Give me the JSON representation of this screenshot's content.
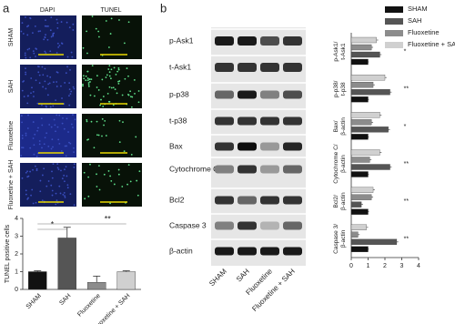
{
  "panel_labels": [
    "a",
    "b"
  ],
  "image_columns": [
    "DAPI",
    "TUNEL"
  ],
  "image_rows": [
    "SHAM",
    "SAH",
    "Fluoxetine",
    "Fluoxetine + SAH"
  ],
  "blot_labels": [
    "p-Ask1",
    "t-Ask1",
    "p-p38",
    "t-p38",
    "Bax",
    "Cytochrome C",
    "Bcl2",
    "Caspase 3",
    "β-actin"
  ],
  "blot_lanes": [
    "SHAM",
    "SAH",
    "Fluoxetine",
    "Fluoxetine + SAH"
  ],
  "chart_data": [
    {
      "type": "bar",
      "y_label": "TUNEL positive cells",
      "categories": [
        "SHAM",
        "SAH",
        "Fluoxetine",
        "Fluoxetine + SAH"
      ],
      "values": [
        1.0,
        2.9,
        0.4,
        1.0
      ],
      "errors": [
        0.05,
        0.6,
        0.35,
        0.05
      ],
      "colors": [
        "#111111",
        "#555555",
        "#8c8c8c",
        "#d0d0d0"
      ],
      "ylim": [
        0,
        4
      ],
      "yticks": [
        0,
        1,
        2,
        3,
        4
      ],
      "annotations": [
        "*",
        "**"
      ]
    },
    {
      "type": "barh",
      "categories": [
        "p-Ask1/t-Ask1",
        "p-p38/t-p38",
        "Bax/β-actin",
        "Cytochrome C/β-actin",
        "Bcl2/β-actin",
        "Caspase 3/β-actin"
      ],
      "series": [
        {
          "name": "SHAM",
          "color": "#111111",
          "values": [
            1.0,
            1.0,
            1.0,
            1.0,
            1.0,
            1.0
          ],
          "errors": [
            0.05,
            0.05,
            0.05,
            0.05,
            0.05,
            0.05
          ]
        },
        {
          "name": "SAH",
          "color": "#555555",
          "values": [
            1.7,
            2.3,
            2.2,
            2.3,
            0.6,
            2.7
          ],
          "errors": [
            0.1,
            0.1,
            0.1,
            0.1,
            0.1,
            0.1
          ]
        },
        {
          "name": "Fluoxetine",
          "color": "#8c8c8c",
          "values": [
            1.2,
            1.3,
            1.2,
            1.1,
            1.2,
            0.4
          ],
          "errors": [
            0.1,
            0.1,
            0.1,
            0.1,
            0.1,
            0.1
          ]
        },
        {
          "name": "Fluoxetine + SAH",
          "color": "#d0d0d0",
          "values": [
            1.5,
            2.0,
            1.7,
            1.7,
            1.3,
            0.9
          ],
          "errors": [
            0.1,
            0.1,
            0.1,
            0.1,
            0.1,
            0.1
          ]
        }
      ],
      "xlim": [
        0,
        4
      ],
      "xticks": [
        0,
        1,
        2,
        3,
        4
      ],
      "legend": "top-right",
      "significance": [
        "*",
        "**",
        "*",
        "**",
        "**",
        "**"
      ]
    }
  ]
}
